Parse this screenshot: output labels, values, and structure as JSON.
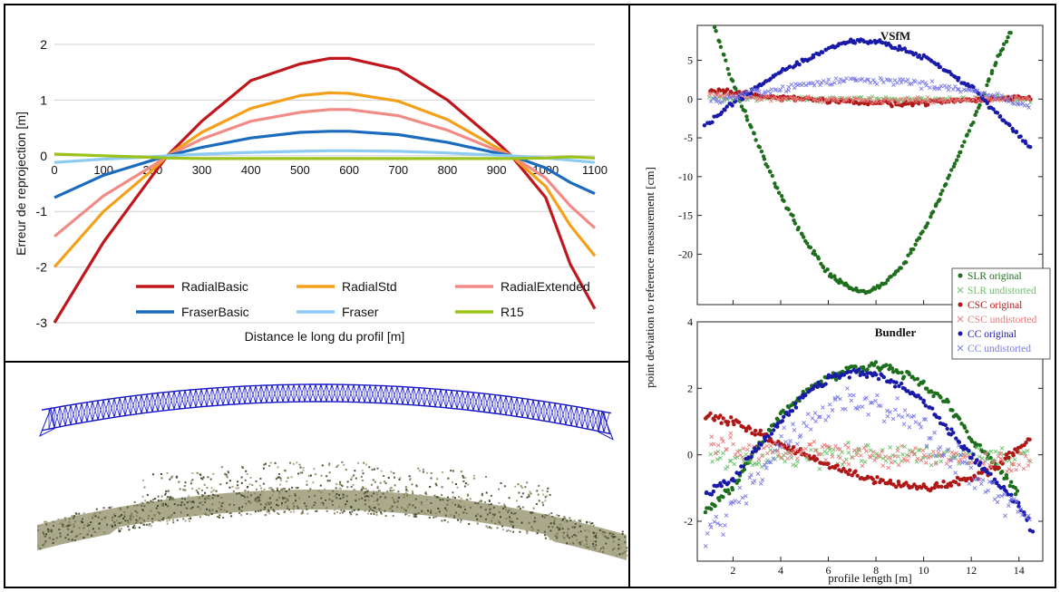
{
  "chart_data": [
    {
      "type": "line",
      "xlabel": "Distance le long du profil [m]",
      "ylabel": "Erreur de reprojection [m]",
      "xlim": [
        0,
        1100
      ],
      "ylim": [
        -3,
        2
      ],
      "xticks": [
        0,
        100,
        200,
        300,
        400,
        500,
        600,
        700,
        800,
        900,
        1000,
        1100
      ],
      "yticks": [
        2,
        1,
        0,
        -1,
        -2,
        -3
      ],
      "grid": "horizontal",
      "legend": "bottom-center",
      "x": [
        0,
        100,
        200,
        230,
        300,
        400,
        500,
        560,
        600,
        700,
        800,
        900,
        930,
        1000,
        1050,
        1100
      ],
      "series": [
        {
          "name": "RadialBasic",
          "color": "#c0161c",
          "values": [
            -3.0,
            -1.55,
            -0.35,
            0.0,
            0.62,
            1.35,
            1.65,
            1.75,
            1.75,
            1.55,
            1.0,
            0.25,
            0.0,
            -0.75,
            -1.95,
            -2.75
          ]
        },
        {
          "name": "RadialStd",
          "color": "#f4a01a",
          "values": [
            -2.0,
            -1.0,
            -0.25,
            0.0,
            0.42,
            0.85,
            1.08,
            1.13,
            1.12,
            0.98,
            0.65,
            0.15,
            0.0,
            -0.55,
            -1.25,
            -1.8
          ]
        },
        {
          "name": "RadialExtended",
          "color": "#f28b85",
          "values": [
            -1.45,
            -0.72,
            -0.18,
            0.0,
            0.3,
            0.62,
            0.78,
            0.83,
            0.83,
            0.72,
            0.46,
            0.1,
            0.0,
            -0.4,
            -0.9,
            -1.3
          ]
        },
        {
          "name": "FraserBasic",
          "color": "#1a6bbd",
          "values": [
            -0.75,
            -0.35,
            -0.08,
            0.0,
            0.15,
            0.32,
            0.42,
            0.44,
            0.44,
            0.38,
            0.24,
            0.05,
            0.0,
            -0.22,
            -0.48,
            -0.68
          ]
        },
        {
          "name": "Fraser",
          "color": "#8ecbf2",
          "values": [
            -0.12,
            -0.06,
            -0.02,
            0.0,
            0.03,
            0.06,
            0.08,
            0.09,
            0.09,
            0.08,
            0.05,
            0.01,
            0.0,
            -0.04,
            -0.08,
            -0.12
          ]
        },
        {
          "name": "R15",
          "color": "#9cc21c",
          "values": [
            0.03,
            0.0,
            -0.03,
            -0.04,
            -0.05,
            -0.05,
            -0.05,
            -0.05,
            -0.05,
            -0.05,
            -0.05,
            -0.05,
            -0.05,
            -0.04,
            -0.02,
            -0.04
          ]
        }
      ]
    },
    {
      "type": "scatter",
      "title": "VSfM",
      "ylabel": "point deviation to reference measurement [cm]",
      "xlim": [
        0.5,
        15
      ],
      "ylim": [
        -26.5,
        9.5
      ],
      "yticks": [
        5,
        0,
        -5,
        -10,
        -15,
        -20
      ],
      "legend": "bottom-right",
      "series": [
        {
          "name": "SLR original",
          "color": "#1e6e1e",
          "marker": "dot",
          "x": [
            1.2,
            2,
            3,
            4,
            5,
            6,
            7,
            7.5,
            8,
            9,
            10,
            11,
            12,
            13,
            13.7
          ],
          "values": [
            9.5,
            2,
            -5.5,
            -12.5,
            -18,
            -22.5,
            -24.5,
            -25,
            -24.5,
            -22,
            -17,
            -10.5,
            -3.5,
            4.5,
            9
          ]
        },
        {
          "name": "SLR undistorted",
          "color": "#6cbf6c",
          "marker": "x",
          "x": [
            1,
            3,
            5,
            7,
            9,
            11,
            13,
            14.5
          ],
          "values": [
            0.2,
            0.0,
            0.1,
            0.0,
            -0.1,
            0.1,
            0.0,
            -0.2
          ]
        },
        {
          "name": "CSC original",
          "color": "#b01818",
          "marker": "dot",
          "x": [
            1,
            3,
            5,
            7,
            9,
            11,
            13,
            14.5
          ],
          "values": [
            1.2,
            0.5,
            0.0,
            -0.4,
            -0.6,
            -0.3,
            0.0,
            0.2
          ]
        },
        {
          "name": "CSC undistorted",
          "color": "#e87a7a",
          "marker": "x",
          "x": [
            1,
            3,
            5,
            7,
            9,
            11,
            13,
            14.5
          ],
          "values": [
            0.6,
            0.2,
            0.0,
            -0.1,
            -0.2,
            -0.1,
            0.0,
            0.1
          ]
        },
        {
          "name": "CC original",
          "color": "#1a1aa8",
          "marker": "dot",
          "x": [
            0.8,
            2,
            4,
            6,
            7,
            8,
            10,
            12,
            13,
            14.5
          ],
          "values": [
            -3.5,
            -0.5,
            3.5,
            6.5,
            7.5,
            7.5,
            5.5,
            1.5,
            -1.5,
            -6.5
          ]
        },
        {
          "name": "CC undistorted",
          "color": "#7a7ae6",
          "marker": "x",
          "x": [
            1,
            3,
            5,
            7,
            9,
            11,
            13,
            14.5
          ],
          "values": [
            -0.5,
            0.8,
            1.8,
            2.5,
            2.3,
            1.5,
            0.5,
            -1.0
          ]
        }
      ]
    },
    {
      "type": "scatter",
      "title": "Bundler",
      "xlabel": "profile length [m]",
      "xlim": [
        0.5,
        15
      ],
      "ylim": [
        -3.2,
        4
      ],
      "xticks": [
        2,
        4,
        6,
        8,
        10,
        12,
        14
      ],
      "yticks": [
        4,
        2,
        0,
        -2
      ],
      "series": [
        {
          "name": "SLR original",
          "color": "#1e6e1e",
          "marker": "dot",
          "x": [
            0.8,
            2,
            3,
            4,
            5,
            6,
            7,
            8,
            9,
            10,
            11,
            12,
            13,
            14
          ],
          "values": [
            -1.7,
            -1.0,
            0.2,
            1.2,
            1.9,
            2.3,
            2.6,
            2.7,
            2.5,
            2.1,
            1.6,
            0.5,
            -0.3,
            -1.2
          ]
        },
        {
          "name": "SLR undistorted",
          "color": "#6cbf6c",
          "marker": "x",
          "x": [
            1,
            3,
            5,
            7,
            9,
            11,
            13,
            14.5
          ],
          "values": [
            -0.1,
            -0.1,
            0.0,
            0.0,
            0.0,
            0.0,
            0.0,
            0.0
          ]
        },
        {
          "name": "CSC original",
          "color": "#b01818",
          "marker": "dot",
          "x": [
            0.8,
            2,
            3,
            4,
            5,
            6,
            7,
            8,
            9,
            10,
            11,
            12,
            13,
            14.5
          ],
          "values": [
            1.2,
            1.0,
            0.7,
            0.3,
            0.0,
            -0.3,
            -0.6,
            -0.8,
            -0.9,
            -1.0,
            -0.9,
            -0.7,
            -0.4,
            0.5
          ]
        },
        {
          "name": "CSC undistorted",
          "color": "#e87a7a",
          "marker": "x",
          "x": [
            1,
            3,
            5,
            7,
            9,
            11,
            13,
            14.5
          ],
          "values": [
            0.3,
            0.2,
            0.1,
            0.0,
            -0.1,
            -0.1,
            -0.2,
            -0.3
          ]
        },
        {
          "name": "CC original",
          "color": "#1a1aa8",
          "marker": "dot",
          "x": [
            0.8,
            2,
            3,
            4,
            5,
            6,
            7,
            8,
            9,
            10,
            11,
            12,
            13,
            14,
            14.6
          ],
          "values": [
            -1.2,
            -0.7,
            0.2,
            1.0,
            1.8,
            2.3,
            2.5,
            2.4,
            2.1,
            1.6,
            0.8,
            0.0,
            -0.8,
            -1.5,
            -2.3
          ]
        },
        {
          "name": "CC undistorted",
          "color": "#7a7ae6",
          "marker": "x",
          "x": [
            0.8,
            2,
            3,
            4,
            5,
            6,
            7,
            8,
            9,
            10,
            11,
            12,
            13,
            14.5
          ],
          "values": [
            -2.6,
            -1.6,
            -0.6,
            0.2,
            0.9,
            1.4,
            1.6,
            1.5,
            1.2,
            0.7,
            0.1,
            -0.6,
            -1.2,
            -1.8
          ]
        }
      ]
    }
  ],
  "figure": {
    "colors": {
      "truss": "#1414c8",
      "ground": "#8c8c6e",
      "vegetation": "#4a5a32"
    }
  }
}
